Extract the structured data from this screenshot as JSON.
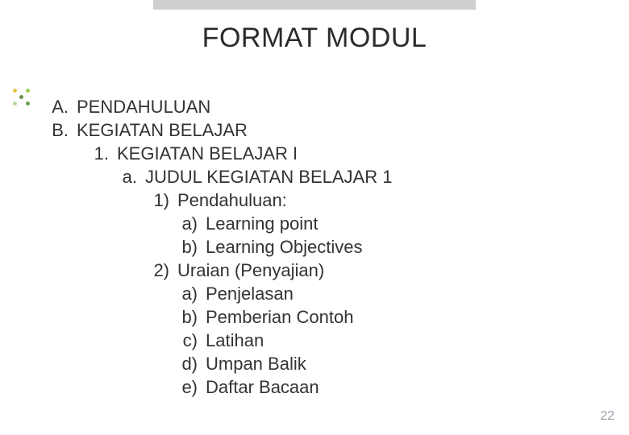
{
  "title": "FORMAT MODUL",
  "page_number": "22",
  "topbar_color": "#cfcfcf",
  "deco_dots": {
    "colors": [
      "#e8c64f",
      "#9bce54",
      "#b9d6a1",
      "#6aa24a",
      "#6a8f4b"
    ],
    "positions": [
      [
        2,
        2
      ],
      [
        18,
        2
      ],
      [
        2,
        18
      ],
      [
        18,
        18
      ],
      [
        10,
        10
      ]
    ]
  },
  "outline": [
    {
      "level": "A",
      "marker": "A.",
      "text": "PENDAHULUAN"
    },
    {
      "level": "A",
      "marker": "B.",
      "text": "KEGIATAN BELAJAR"
    },
    {
      "level": "1",
      "marker": "1.",
      "text": "KEGIATAN BELAJAR I"
    },
    {
      "level": "a",
      "marker": "a.",
      "text": "JUDUL KEGIATAN BELAJAR 1"
    },
    {
      "level": "p",
      "marker": "1)",
      "text": "Pendahuluan:"
    },
    {
      "level": "i",
      "marker": "a)",
      "text": "Learning point"
    },
    {
      "level": "i",
      "marker": "b)",
      "text": "Learning Objectives"
    },
    {
      "level": "p",
      "marker": "2)",
      "text": "Uraian (Penyajian)"
    },
    {
      "level": "i",
      "marker": "a)",
      "text": "Penjelasan"
    },
    {
      "level": "i",
      "marker": "b)",
      "text": "Pemberian Contoh"
    },
    {
      "level": "i",
      "marker": "c)",
      "text": "Latihan"
    },
    {
      "level": "i",
      "marker": "d)",
      "text": "Umpan Balik"
    },
    {
      "level": "i",
      "marker": "e)",
      "text": "Daftar Bacaan"
    }
  ]
}
